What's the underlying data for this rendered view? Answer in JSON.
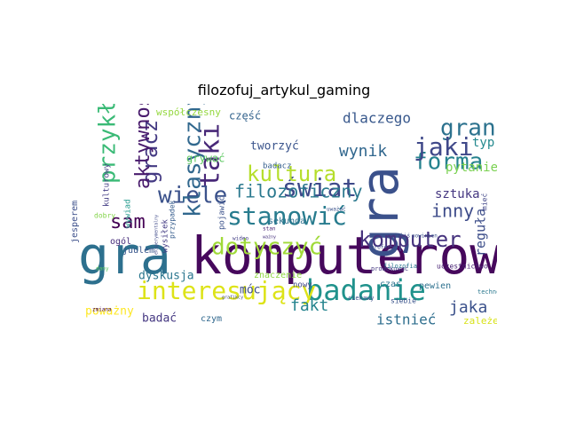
{
  "chart_data": {
    "type": "wordcloud",
    "title": "filozofuj_artykul_gaming",
    "words": [
      {
        "text": "komputerowy",
        "weight": 100,
        "color": "#46085c"
      },
      {
        "text": "gra",
        "weight": 90,
        "color": "#2d708e"
      },
      {
        "text": "gra",
        "weight": 80,
        "color": "#3b518b"
      },
      {
        "text": "badanie",
        "weight": 55,
        "color": "#20928c"
      },
      {
        "text": "interesujący",
        "weight": 50,
        "color": "#dde318"
      },
      {
        "text": "wiele",
        "weight": 48,
        "color": "#3b528b"
      },
      {
        "text": "świat",
        "weight": 45,
        "color": "#3e4989"
      },
      {
        "text": "taki",
        "weight": 45,
        "color": "#482878"
      },
      {
        "text": "kultura",
        "weight": 42,
        "color": "#b5de2b"
      },
      {
        "text": "forma",
        "weight": 40,
        "color": "#26828e"
      },
      {
        "text": "klasyczny",
        "weight": 40,
        "color": "#31688e"
      },
      {
        "text": "stanowić",
        "weight": 40,
        "color": "#287c8e"
      },
      {
        "text": "gran",
        "weight": 38,
        "color": "#2c728e"
      },
      {
        "text": "komputer",
        "weight": 38,
        "color": "#46337e"
      },
      {
        "text": "przykład",
        "weight": 38,
        "color": "#3aba76"
      },
      {
        "text": "gracz",
        "weight": 36,
        "color": "#443a83"
      },
      {
        "text": "jaki",
        "weight": 36,
        "color": "#3f4889"
      },
      {
        "text": "dotyczyć",
        "weight": 34,
        "color": "#a0da39"
      },
      {
        "text": "aktywność",
        "weight": 30,
        "color": "#481a6c"
      },
      {
        "text": "sam",
        "weight": 30,
        "color": "#440154"
      },
      {
        "text": "inny",
        "weight": 28,
        "color": "#3e4c8a"
      },
      {
        "text": "filozoficzny",
        "weight": 28,
        "color": "#2a788e"
      },
      {
        "text": "wynik",
        "weight": 26,
        "color": "#31678e"
      },
      {
        "text": "jaka",
        "weight": 24,
        "color": "#3b518b"
      },
      {
        "text": "fakt",
        "weight": 24,
        "color": "#25848e"
      },
      {
        "text": "dlaczego",
        "weight": 22,
        "color": "#38588c"
      },
      {
        "text": "istnieć",
        "weight": 22,
        "color": "#2e6e8e"
      },
      {
        "text": "reguła",
        "weight": 20,
        "color": "#3d4e8a"
      },
      {
        "text": "typ",
        "weight": 20,
        "color": "#23898e"
      },
      {
        "text": "pytanie",
        "weight": 18,
        "color": "#7ad151"
      },
      {
        "text": "sztuka",
        "weight": 18,
        "color": "#453781"
      },
      {
        "text": "dyskusja",
        "weight": 16,
        "color": "#2a768e"
      },
      {
        "text": "tworzyć",
        "weight": 16,
        "color": "#3a548c"
      },
      {
        "text": "poważny",
        "weight": 16,
        "color": "#fde725"
      },
      {
        "text": "badać",
        "weight": 16,
        "color": "#453882"
      },
      {
        "text": "móc",
        "weight": 16,
        "color": "#3d4d8a"
      },
      {
        "text": "część",
        "weight": 14,
        "color": "#33638d"
      },
      {
        "text": "grywać",
        "weight": 14,
        "color": "#5ec962"
      },
      {
        "text": "współczesny",
        "weight": 12,
        "color": "#95d840"
      },
      {
        "text": "zależeć",
        "weight": 12,
        "color": "#d8e219"
      },
      {
        "text": "czas",
        "weight": 12,
        "color": "#2c738e"
      },
      {
        "text": "pewien",
        "weight": 12,
        "color": "#2d708e"
      },
      {
        "text": "czym",
        "weight": 11,
        "color": "#31688e"
      },
      {
        "text": "ogól",
        "weight": 11,
        "color": "#472d7b"
      },
      {
        "text": "juulem",
        "weight": 11,
        "color": "#39568c"
      },
      {
        "text": "jesperem",
        "weight": 10,
        "color": "#3c4f8a"
      },
      {
        "text": "znaczenie",
        "weight": 10,
        "color": "#8fd744"
      },
      {
        "text": "sekunda",
        "weight": 10,
        "color": "#2d718e"
      },
      {
        "text": "wysiłek",
        "weight": 10,
        "color": "#443b84"
      },
      {
        "text": "badacz",
        "weight": 10,
        "color": "#355f8d"
      },
      {
        "text": "nowy",
        "weight": 9,
        "color": "#3f4788"
      },
      {
        "text": "kulturowy",
        "weight": 9,
        "color": "#433d84"
      },
      {
        "text": "wywiad",
        "weight": 9,
        "color": "#1f988b"
      },
      {
        "text": "przypadek",
        "weight": 9,
        "color": "#365c8d"
      },
      {
        "text": "pojawić",
        "weight": 9,
        "color": "#3b528b"
      },
      {
        "text": "dobry",
        "weight": 8,
        "color": "#84d44b"
      },
      {
        "text": "mieć",
        "weight": 8,
        "color": "#404588"
      },
      {
        "text": "uczestnictwo",
        "weight": 8,
        "color": "#482374"
      },
      {
        "text": "siebie",
        "weight": 8,
        "color": "#3a538b"
      },
      {
        "text": "ciekawy",
        "weight": 7,
        "color": "#3c4f8a"
      },
      {
        "text": "technologia",
        "weight": 7,
        "color": "#2a788e"
      },
      {
        "text": "prowokować",
        "weight": 7,
        "color": "#453882"
      },
      {
        "text": "filozofia",
        "weight": 7,
        "color": "#2a768e"
      },
      {
        "text": "powinien",
        "weight": 6,
        "color": "#3b528b"
      },
      {
        "text": "profesor",
        "weight": 6,
        "color": "#3d4e8a"
      },
      {
        "text": "jakiś",
        "weight": 6,
        "color": "#3e4a89"
      },
      {
        "text": "wideo",
        "weight": 6,
        "color": "#433e85"
      },
      {
        "text": "zmiana",
        "weight": 6,
        "color": "#440154"
      },
      {
        "text": "stan",
        "weight": 6,
        "color": "#482475"
      },
      {
        "text": "uważać",
        "weight": 5,
        "color": "#3b528b"
      },
      {
        "text": "dany",
        "weight": 5,
        "color": "#5ec962"
      },
      {
        "text": "ważny",
        "weight": 5,
        "color": "#46327e"
      },
      {
        "text": "eksperymentalny",
        "weight": 5,
        "color": "#3e4989"
      },
      {
        "text": "grafikcy",
        "weight": 5,
        "color": "#404688"
      }
    ]
  }
}
